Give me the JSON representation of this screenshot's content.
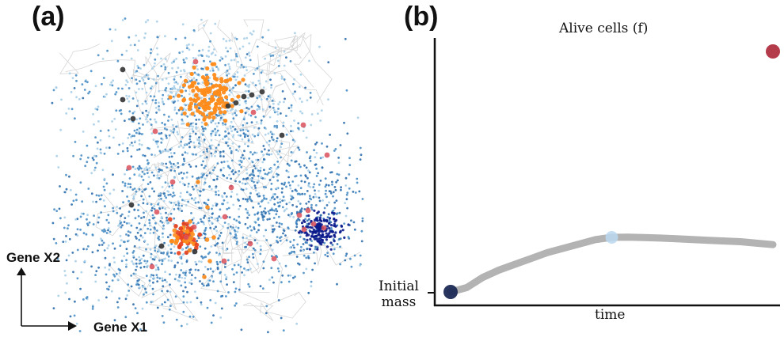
{
  "panel_a": {
    "label": "(a)",
    "axis_x_label": "Gene X1",
    "axis_y_label": "Gene X2"
  },
  "panel_b": {
    "label": "(b)"
  },
  "chart_data": [
    {
      "type": "scatter",
      "title": "",
      "xlabel": "Gene X1",
      "ylabel": "Gene X2",
      "grid": false,
      "legend": "none",
      "description_of_groups": [
        "blue cell cloud",
        "orange cluster",
        "red-orange cluster",
        "dark blue cluster",
        "red cells",
        "black cells"
      ],
      "colors": {
        "light_blue": "#a9cfe8",
        "mid_blue": "#4b8fc6",
        "dark_blue": "#2f6fae",
        "navy": "#0a1a8c",
        "orange": "#ff8c1a",
        "red_orange": "#e8401c",
        "red": "#d9505a",
        "black": "#333333",
        "trace_gray": "#d6d6d6"
      }
    },
    {
      "type": "line",
      "title": "Alive cells (f)",
      "xlabel": "time",
      "ylabel": "",
      "y_tick_label": "Initial\nmass",
      "grid": false,
      "series": [
        {
          "name": "",
          "color": "#b3b3b3",
          "x": [
            0,
            0.05,
            0.1,
            0.15,
            0.2,
            0.25,
            0.3,
            0.35,
            0.4,
            0.45,
            0.5,
            0.55,
            0.6,
            0.65,
            0.7,
            0.75,
            0.8,
            0.85,
            0.9,
            0.95,
            1.0
          ],
          "y": [
            0.0,
            0.03,
            0.1,
            0.15,
            0.19,
            0.23,
            0.27,
            0.3,
            0.33,
            0.36,
            0.375,
            0.376,
            0.374,
            0.37,
            0.365,
            0.36,
            0.355,
            0.35,
            0.345,
            0.335,
            0.325
          ]
        }
      ],
      "markers": [
        {
          "name": "start",
          "x": 0.0,
          "y": 0.0,
          "color": "#1c2a55"
        },
        {
          "name": "peak",
          "x": 0.5,
          "y": 0.375,
          "color": "#bcd8ee"
        },
        {
          "name": "outlier",
          "x": 1.0,
          "y": 1.22,
          "color": "#b0303f"
        }
      ]
    }
  ]
}
